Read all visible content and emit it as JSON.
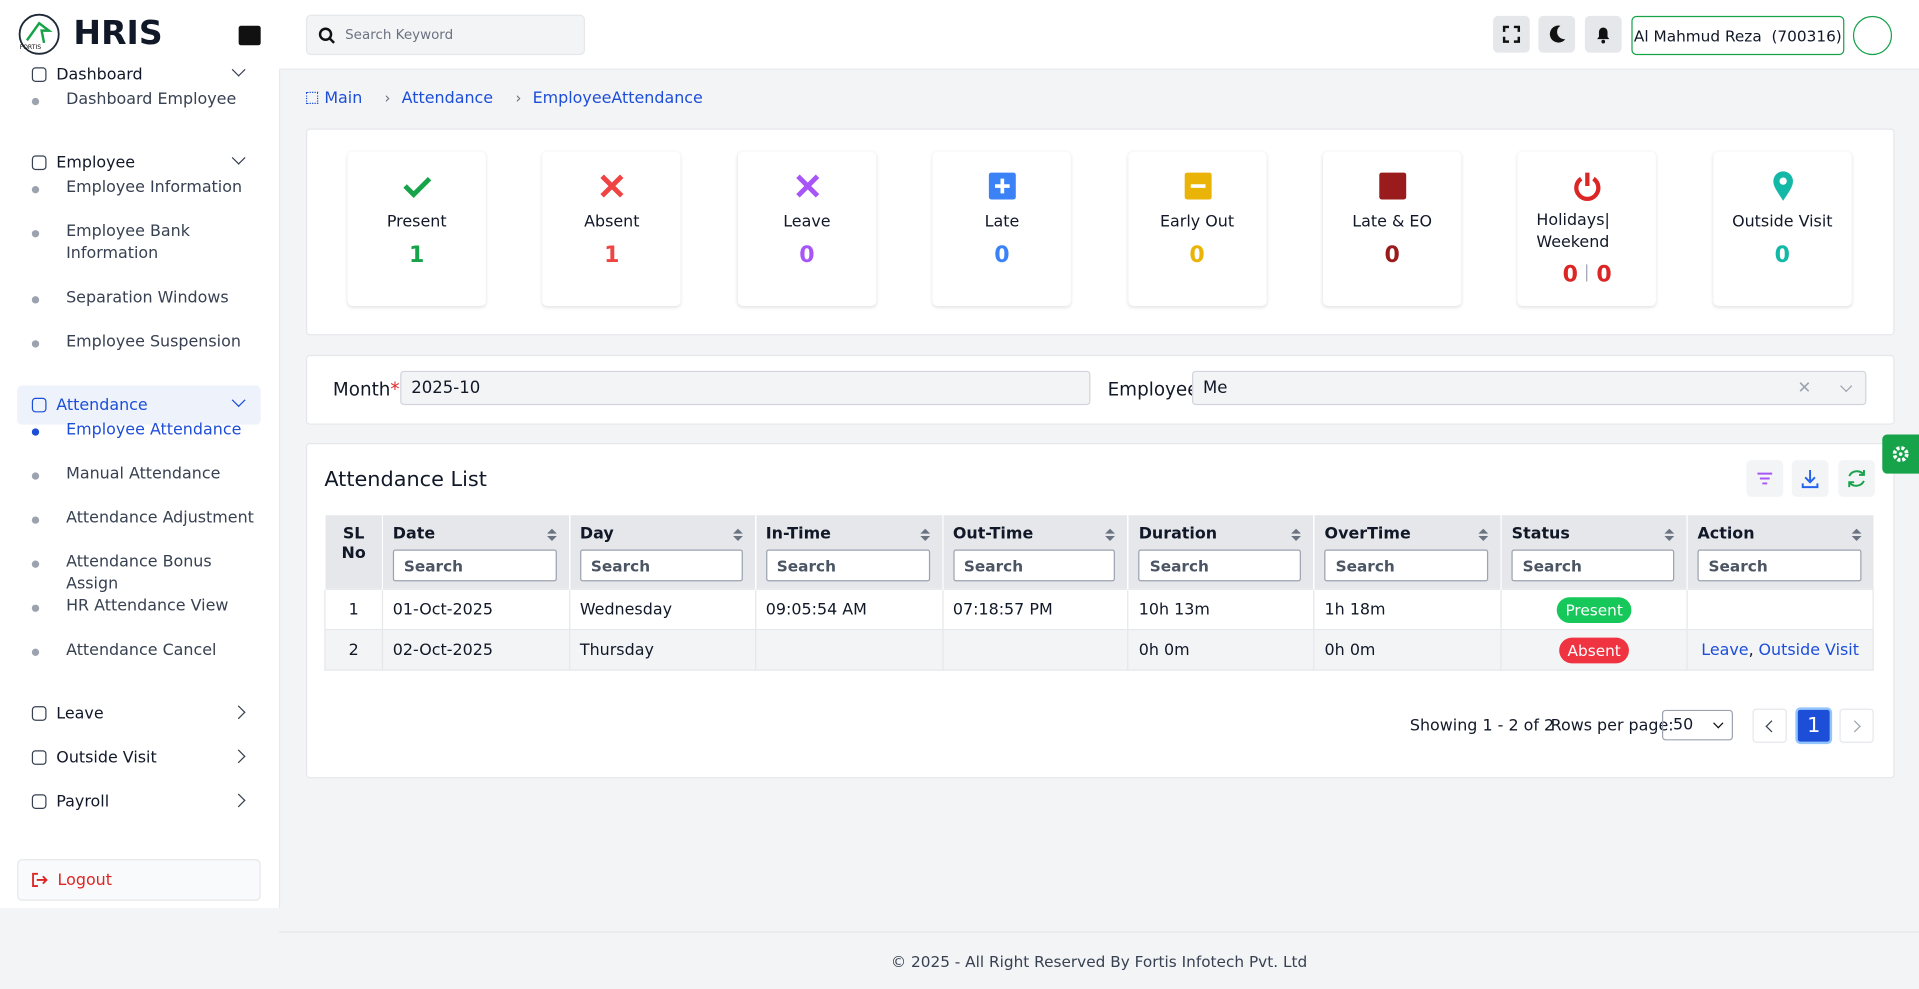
{
  "logo_text": "FORTIS",
  "brand": "HRIS",
  "sidebar": {
    "items": [
      {
        "label": "Dashboard",
        "children": [
          "Dashboard Employee"
        ]
      },
      {
        "label": "Employee",
        "children": [
          "Employee Information",
          "Employee Bank Information",
          "Separation Windows",
          "Employee Suspension"
        ]
      },
      {
        "label": "Attendance",
        "active": true,
        "active_child": 0,
        "children": [
          "Employee Attendance",
          "Manual Attendance",
          "Attendance Adjustment",
          "Attendance Bonus Assign",
          "HR Attendance View",
          "Attendance Cancel"
        ]
      },
      {
        "label": "Leave"
      },
      {
        "label": "Outside Visit"
      },
      {
        "label": "Payroll"
      }
    ],
    "logout": "Logout"
  },
  "header": {
    "search_placeholder": "Search Keyword",
    "user": "Al Mahmud Reza  (700316)"
  },
  "breadcrumb": [
    "Main",
    "Attendance",
    "EmployeeAttendance"
  ],
  "stats": [
    {
      "label": "Present",
      "values": [
        1
      ],
      "color": "#16a34a"
    },
    {
      "label": "Absent",
      "values": [
        1
      ],
      "color": "#ef4444"
    },
    {
      "label": "Leave",
      "values": [
        0
      ],
      "color": "#a855f7"
    },
    {
      "label": "Late",
      "values": [
        0
      ],
      "color": "#3b82f6"
    },
    {
      "label": "Early Out",
      "values": [
        0
      ],
      "color": "#eab308"
    },
    {
      "label": "Late & EO",
      "values": [
        0
      ],
      "color": "#991b1b"
    },
    {
      "label": "Holidays| Weekend",
      "values": [
        0,
        0
      ],
      "color": "#dc2626"
    },
    {
      "label": "Outside Visit",
      "values": [
        0
      ],
      "color": "#14b8a6"
    }
  ],
  "filters": {
    "month_label": "Month",
    "required_mark": "*",
    "month_value": "2025-10",
    "employee_label": "Employee",
    "employee_value": "Me"
  },
  "table": {
    "title": "Attendance List",
    "columns": [
      "SL No",
      "Date",
      "Day",
      "In-Time",
      "Out-Time",
      "Duration",
      "OverTime",
      "Status",
      "Action"
    ],
    "search_placeholder": "Search",
    "action_separator": ",",
    "rows": [
      {
        "cells": [
          "1",
          "01-Oct-2025",
          "Wednesday",
          "09:05:54 AM",
          "07:18:57 PM",
          "10h 13m",
          "1h 18m"
        ],
        "status": "Present",
        "status_color": "#16c75a",
        "actions": []
      },
      {
        "cells": [
          "2",
          "02-Oct-2025",
          "Thursday",
          null,
          null,
          "0h 0m",
          "0h 0m"
        ],
        "status": "Absent",
        "status_color": "#ef3340",
        "actions": [
          "Leave",
          "Outside Visit"
        ]
      }
    ]
  },
  "pagination": {
    "showing": "Showing 1 - 2 of 2",
    "rows_per_page_label": "Rows per page:",
    "rows_per_page": "50",
    "page": "1"
  },
  "footer": "© 2025 - All Right Reserved By Fortis Infotech Pvt. Ltd"
}
